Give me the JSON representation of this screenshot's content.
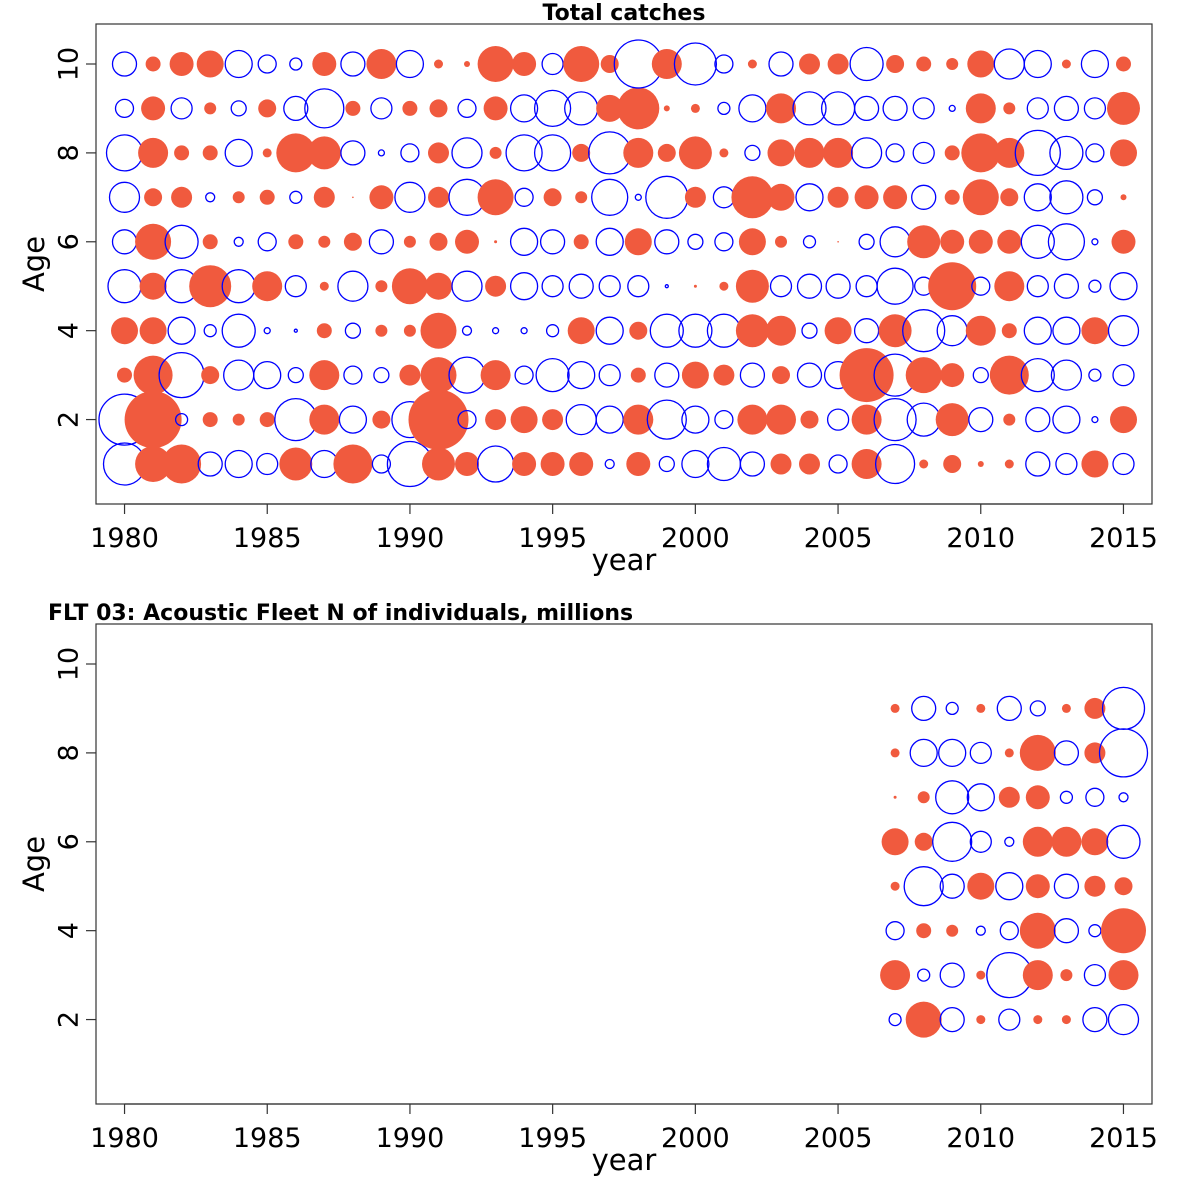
{
  "colors": {
    "positive": "#f05a3e",
    "negative": "#0000ff"
  },
  "chart_data": [
    {
      "type": "scatter",
      "subtype": "bubble",
      "title": "Total catches",
      "xlabel": "year",
      "ylabel": "Age",
      "xlim": [
        1979,
        2016
      ],
      "ylim": [
        0.1,
        10.9
      ],
      "x_ticks": [
        1980,
        1985,
        1990,
        1995,
        2000,
        2005,
        2010,
        2015
      ],
      "y_ticks": [
        2,
        4,
        6,
        8,
        10
      ],
      "years": [
        1980,
        1981,
        1982,
        1983,
        1984,
        1985,
        1986,
        1987,
        1988,
        1989,
        1990,
        1991,
        1992,
        1993,
        1994,
        1995,
        1996,
        1997,
        1998,
        1999,
        2000,
        2001,
        2002,
        2003,
        2004,
        2005,
        2006,
        2007,
        2008,
        2009,
        2010,
        2011,
        2012,
        2013,
        2014,
        2015
      ],
      "ages": [
        1,
        2,
        3,
        4,
        5,
        6,
        7,
        8,
        9,
        10
      ],
      "residuals_note": "rows by age 1..10, columns by year; positive = filled red, negative = open blue; magnitude = bubble radius",
      "residuals": [
        [
          -1.4,
          1.2,
          1.3,
          -0.8,
          -0.9,
          -0.7,
          1.1,
          -0.9,
          1.3,
          -0.6,
          -1.5,
          1.1,
          0.8,
          -1.2,
          0.8,
          0.8,
          0.8,
          -0.3,
          0.8,
          -0.5,
          -0.9,
          -1.1,
          -0.8,
          0.7,
          0.7,
          -0.6,
          1.0,
          -1.3,
          0.3,
          0.6,
          0.2,
          0.3,
          -0.8,
          -0.7,
          0.9,
          -0.7
        ],
        [
          -1.7,
          1.9,
          -0.4,
          0.5,
          0.4,
          0.5,
          -1.4,
          1.0,
          -0.9,
          0.6,
          -1.2,
          2.0,
          -0.6,
          0.7,
          0.9,
          0.7,
          -1.0,
          -0.9,
          1.0,
          -1.3,
          -0.9,
          -0.6,
          1.0,
          1.0,
          0.6,
          -0.7,
          1.0,
          -1.4,
          -1.1,
          1.1,
          -0.8,
          0.4,
          -0.8,
          -0.9,
          -0.2,
          0.9
        ],
        [
          0.5,
          1.3,
          -1.5,
          0.6,
          -1.0,
          -0.9,
          -0.5,
          1.0,
          -0.6,
          -0.5,
          0.7,
          1.2,
          -1.2,
          1.0,
          -0.6,
          -1.1,
          -0.9,
          -0.7,
          0.5,
          -0.8,
          0.9,
          0.7,
          -0.8,
          0.6,
          -0.8,
          -0.9,
          1.8,
          -1.4,
          1.2,
          0.8,
          -0.5,
          1.3,
          -1.1,
          -1.0,
          -0.4,
          -0.7
        ],
        [
          0.9,
          0.9,
          -0.9,
          -0.4,
          -1.1,
          -0.2,
          -0.1,
          0.5,
          -0.5,
          0.4,
          0.4,
          1.2,
          -0.3,
          -0.2,
          -0.2,
          -0.4,
          0.9,
          -0.9,
          0.6,
          -1.1,
          -1.1,
          -1.1,
          1.1,
          1.0,
          -0.5,
          0.9,
          -0.8,
          1.1,
          -1.4,
          -1.0,
          1.0,
          0.5,
          -0.9,
          -0.9,
          0.9,
          -1.0
        ],
        [
          -1.1,
          0.9,
          -1.1,
          1.4,
          -1.1,
          1.0,
          -0.7,
          0.3,
          -1.0,
          0.4,
          1.2,
          0.9,
          -1.0,
          0.7,
          -0.9,
          -0.7,
          -0.8,
          -0.7,
          -0.7,
          -0.1,
          0.1,
          0.3,
          1.1,
          -0.7,
          -0.8,
          -0.8,
          -0.7,
          -1.2,
          -0.6,
          1.6,
          -0.6,
          1.0,
          -0.7,
          -0.8,
          -0.4,
          -0.9
        ],
        [
          -0.8,
          1.2,
          -1.1,
          0.5,
          -0.3,
          -0.6,
          0.5,
          0.4,
          0.6,
          -0.8,
          0.4,
          0.6,
          0.8,
          0.1,
          -0.9,
          -0.8,
          0.5,
          -0.9,
          0.9,
          -0.8,
          -0.5,
          -0.6,
          0.9,
          0.4,
          -0.4,
          0.05,
          -0.5,
          -1.0,
          1.1,
          0.8,
          0.8,
          0.8,
          -1.1,
          -1.2,
          -0.2,
          0.8
        ],
        [
          -1.0,
          0.6,
          0.7,
          -0.3,
          0.4,
          0.5,
          -0.4,
          0.7,
          0.05,
          0.8,
          -1.0,
          0.7,
          -1.2,
          1.2,
          -0.6,
          0.6,
          0.4,
          -1.2,
          -0.2,
          -1.4,
          0.7,
          -0.7,
          1.4,
          0.9,
          -0.9,
          0.7,
          0.8,
          0.8,
          -0.8,
          0.5,
          1.2,
          0.6,
          -0.9,
          -1.1,
          -0.5,
          0.2
        ],
        [
          -1.2,
          1.0,
          0.5,
          0.5,
          -0.9,
          0.3,
          1.3,
          1.1,
          -0.8,
          -0.2,
          -0.6,
          0.7,
          -1.0,
          0.4,
          -1.2,
          -1.2,
          0.6,
          -1.4,
          1.0,
          0.6,
          1.1,
          0.3,
          -0.5,
          0.9,
          1.0,
          1.0,
          -1.0,
          -0.6,
          -0.7,
          0.5,
          1.3,
          1.0,
          -1.5,
          -1.1,
          -0.6,
          0.9
        ],
        [
          -0.6,
          0.8,
          -0.7,
          0.4,
          -0.5,
          0.6,
          -0.8,
          -1.3,
          0.5,
          -0.7,
          0.5,
          0.6,
          -0.6,
          0.8,
          -0.9,
          -1.2,
          -1.1,
          0.9,
          1.4,
          0.2,
          0.3,
          -0.4,
          -0.9,
          1.0,
          -1.1,
          -1.1,
          -0.8,
          -0.8,
          -0.7,
          -0.2,
          1.0,
          0.4,
          -0.7,
          -0.8,
          -0.7,
          1.1
        ],
        [
          -0.8,
          0.5,
          0.8,
          0.9,
          -0.9,
          -0.6,
          -0.4,
          0.8,
          -0.8,
          1.0,
          -0.9,
          0.3,
          0.2,
          1.2,
          0.8,
          -0.7,
          1.2,
          0.6,
          -1.6,
          1.0,
          -1.4,
          -0.6,
          0.3,
          -0.8,
          0.7,
          0.7,
          -1.1,
          0.6,
          0.5,
          0.4,
          0.9,
          -1.0,
          -0.9,
          0.3,
          -0.9,
          0.5
        ]
      ]
    },
    {
      "type": "scatter",
      "subtype": "bubble",
      "title": "FLT 03: Acoustic Fleet   N of individuals, millions",
      "xlabel": "year",
      "ylabel": "Age",
      "xlim": [
        1979,
        2016
      ],
      "ylim": [
        0.1,
        10.9
      ],
      "x_ticks": [
        1980,
        1985,
        1990,
        1995,
        2000,
        2005,
        2010,
        2015
      ],
      "y_ticks": [
        2,
        4,
        6,
        8,
        10
      ],
      "years": [
        2007,
        2008,
        2009,
        2010,
        2011,
        2012,
        2013,
        2014,
        2015
      ],
      "ages": [
        2,
        3,
        4,
        5,
        6,
        7,
        8,
        9
      ],
      "residuals": [
        [
          -0.4,
          1.2,
          -0.8,
          0.3,
          -0.7,
          0.3,
          0.3,
          -0.8,
          -1.0
        ],
        [
          1.0,
          -0.4,
          -0.8,
          0.3,
          -1.5,
          1.0,
          0.4,
          -0.7,
          1.0
        ],
        [
          -0.6,
          0.5,
          0.4,
          -0.3,
          -0.6,
          1.2,
          -0.8,
          -0.4,
          1.5
        ],
        [
          0.3,
          -1.3,
          -0.8,
          0.9,
          -0.9,
          0.8,
          -0.8,
          0.7,
          0.6
        ],
        [
          0.9,
          0.6,
          -1.3,
          -0.7,
          -0.3,
          1.0,
          1.0,
          0.9,
          -1.1
        ],
        [
          0.1,
          0.4,
          -1.1,
          -0.9,
          0.7,
          0.8,
          -0.4,
          -0.6,
          -0.3
        ],
        [
          0.3,
          -0.9,
          -0.9,
          -0.7,
          0.3,
          1.2,
          -0.8,
          0.7,
          -1.6
        ],
        [
          0.3,
          -0.8,
          -0.4,
          0.3,
          -0.8,
          -0.5,
          0.3,
          0.7,
          -1.4
        ]
      ]
    }
  ]
}
